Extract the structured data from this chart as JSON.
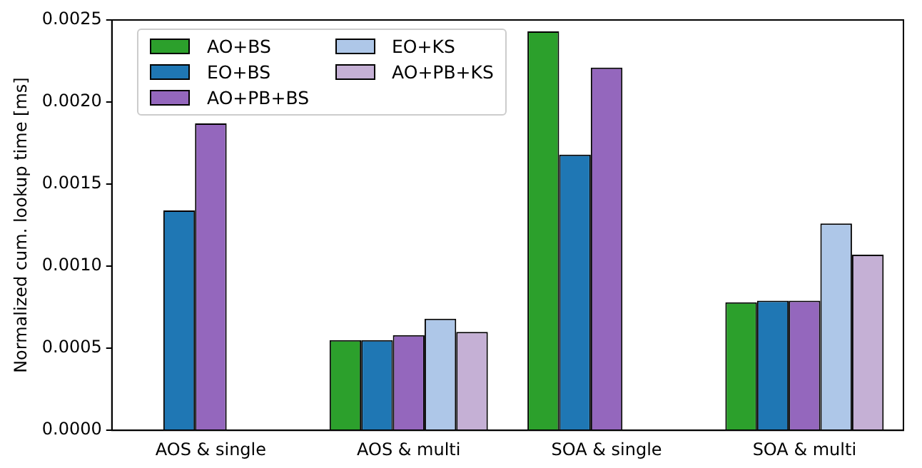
{
  "chart_data": {
    "type": "bar",
    "ylabel": "Normalized cum. lookup time [ms]",
    "categories": [
      "AOS & single",
      "AOS & multi",
      "SOA & single",
      "SOA & multi"
    ],
    "series": [
      {
        "name": "AO+BS",
        "color": "#2ca02c",
        "values": [
          null,
          0.00055,
          0.00243,
          0.00078
        ]
      },
      {
        "name": "EO+BS",
        "color": "#1f77b4",
        "values": [
          0.00134,
          0.00055,
          0.00168,
          0.00079
        ]
      },
      {
        "name": "AO+PB+BS",
        "color": "#9467bd",
        "values": [
          0.00187,
          0.00058,
          0.00221,
          0.00079
        ]
      },
      {
        "name": "EO+KS",
        "color": "#aec7e8",
        "values": [
          null,
          0.00068,
          null,
          0.00126
        ]
      },
      {
        "name": "AO+PB+KS",
        "color": "#c5b0d5",
        "values": [
          null,
          0.0006,
          null,
          0.00107
        ]
      }
    ],
    "ylim": [
      0,
      0.0025
    ],
    "yticks": [
      {
        "value": 0,
        "label": "0.0000"
      },
      {
        "value": 0.0005,
        "label": "0.0005"
      },
      {
        "value": 0.001,
        "label": "0.0010"
      },
      {
        "value": 0.0015,
        "label": "0.0015"
      },
      {
        "value": 0.002,
        "label": "0.0020"
      },
      {
        "value": 0.0025,
        "label": "0.0025"
      }
    ],
    "grid": false,
    "legend": "top left"
  }
}
